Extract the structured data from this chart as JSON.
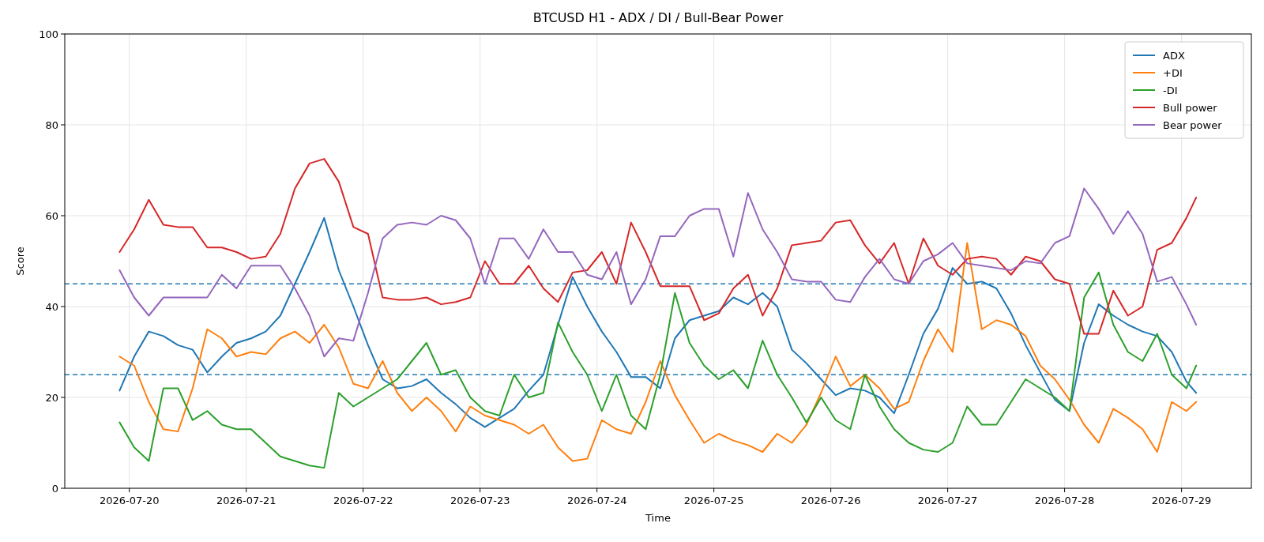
{
  "chart_data": {
    "type": "line",
    "title": "BTCUSD H1 - ADX / DI / Bull-Bear Power",
    "xlabel": "Time",
    "ylabel": "Score",
    "x": [
      "2026-07-19T22:00",
      "2026-07-20T01:00",
      "2026-07-20T04:00",
      "2026-07-20T07:00",
      "2026-07-20T10:00",
      "2026-07-20T13:00",
      "2026-07-20T16:00",
      "2026-07-20T19:00",
      "2026-07-20T22:00",
      "2026-07-21T01:00",
      "2026-07-21T04:00",
      "2026-07-21T07:00",
      "2026-07-21T10:00",
      "2026-07-21T13:00",
      "2026-07-21T16:00",
      "2026-07-21T19:00",
      "2026-07-21T22:00",
      "2026-07-22T01:00",
      "2026-07-22T04:00",
      "2026-07-22T07:00",
      "2026-07-22T10:00",
      "2026-07-22T13:00",
      "2026-07-22T16:00",
      "2026-07-22T19:00",
      "2026-07-22T22:00",
      "2026-07-23T01:00",
      "2026-07-23T04:00",
      "2026-07-23T07:00",
      "2026-07-23T10:00",
      "2026-07-23T13:00",
      "2026-07-23T16:00",
      "2026-07-23T19:00",
      "2026-07-23T22:00",
      "2026-07-24T01:00",
      "2026-07-24T04:00",
      "2026-07-24T07:00",
      "2026-07-24T10:00",
      "2026-07-24T13:00",
      "2026-07-24T16:00",
      "2026-07-24T19:00",
      "2026-07-24T22:00",
      "2026-07-25T01:00",
      "2026-07-25T04:00",
      "2026-07-25T07:00",
      "2026-07-25T10:00",
      "2026-07-25T13:00",
      "2026-07-25T16:00",
      "2026-07-25T19:00",
      "2026-07-25T22:00",
      "2026-07-26T01:00",
      "2026-07-26T04:00",
      "2026-07-26T07:00",
      "2026-07-26T10:00",
      "2026-07-26T13:00",
      "2026-07-26T16:00",
      "2026-07-26T19:00",
      "2026-07-26T22:00",
      "2026-07-27T01:00",
      "2026-07-27T04:00",
      "2026-07-27T07:00",
      "2026-07-27T10:00",
      "2026-07-27T13:00",
      "2026-07-27T16:00",
      "2026-07-27T19:00",
      "2026-07-27T22:00",
      "2026-07-28T01:00",
      "2026-07-28T04:00",
      "2026-07-28T07:00",
      "2026-07-28T10:00",
      "2026-07-28T13:00",
      "2026-07-28T16:00",
      "2026-07-28T19:00",
      "2026-07-28T22:00",
      "2026-07-29T01:00",
      "2026-07-29T03:00"
    ],
    "series": [
      {
        "name": "ADX",
        "color": "#1f77b4",
        "values": [
          21.5,
          29,
          34.5,
          33.5,
          31.5,
          30.5,
          25.5,
          29,
          32,
          33,
          34.5,
          38,
          45,
          52,
          59.5,
          48,
          40,
          31.5,
          24,
          22,
          22.5,
          24,
          21,
          18.5,
          15.5,
          13.5,
          15.5,
          17.5,
          21.5,
          25,
          36,
          46.5,
          40,
          34.5,
          30,
          24.5,
          24.5,
          22,
          33,
          37,
          38,
          39,
          42,
          40.5,
          43,
          40,
          30.5,
          27.5,
          24,
          20.5,
          22,
          21.5,
          20,
          16.5,
          25,
          34,
          39.5,
          48.5,
          45,
          45.5,
          44,
          38.5,
          31.5,
          25.5,
          19.5,
          17,
          32,
          40.5,
          38,
          36,
          34.5,
          33.5,
          30,
          23.5,
          21
        ]
      },
      {
        "name": "+DI",
        "color": "#ff7f0e",
        "values": [
          29,
          27,
          19,
          13,
          12.5,
          22,
          35,
          33,
          29,
          30,
          29.5,
          33,
          34.5,
          32,
          36,
          31,
          23,
          22,
          28,
          21,
          17,
          20,
          17,
          12.5,
          18,
          16,
          15,
          14,
          12,
          14,
          9,
          6,
          6.5,
          15,
          13,
          12,
          19,
          28,
          20.5,
          15,
          10,
          12,
          10.5,
          9.5,
          8,
          12,
          10,
          14,
          21,
          29,
          22.5,
          25,
          22,
          17.5,
          19,
          28,
          35,
          30,
          54,
          35,
          37,
          36,
          33.5,
          27,
          24,
          19.5,
          14,
          10,
          17.5,
          15.5,
          13,
          8,
          19,
          17,
          19
        ]
      },
      {
        "name": "-DI",
        "color": "#2ca02c",
        "values": [
          14.5,
          9,
          6,
          22,
          22,
          15,
          17,
          14,
          13,
          13,
          10,
          7,
          6,
          5,
          4.5,
          21,
          18,
          20,
          22,
          24,
          28,
          32,
          25,
          26,
          20,
          17,
          16,
          25,
          20,
          21,
          36.5,
          30,
          25,
          17,
          25,
          16,
          13,
          25,
          43,
          32,
          27,
          24,
          26,
          22,
          32.5,
          25,
          20,
          14.5,
          20,
          15,
          13,
          25,
          18,
          13,
          10,
          8.5,
          8,
          10,
          18,
          14,
          14,
          19,
          24,
          22,
          20,
          17,
          42,
          47.5,
          36,
          30,
          28,
          34,
          25,
          22,
          27
        ]
      },
      {
        "name": "Bull power",
        "color": "#d62728",
        "values": [
          52,
          57,
          63.5,
          58,
          57.5,
          57.5,
          53,
          53,
          52,
          50.5,
          51,
          56,
          66,
          71.5,
          72.5,
          67.5,
          57.5,
          56,
          42,
          41.5,
          41.5,
          42,
          40.5,
          41,
          42,
          50,
          45,
          45,
          49,
          44,
          41,
          47.5,
          48,
          52,
          45,
          58.5,
          52,
          44.5,
          44.5,
          44.5,
          37,
          38.5,
          44,
          47,
          38,
          44,
          53.5,
          54,
          54.5,
          58.5,
          59,
          53.5,
          49.5,
          54,
          45,
          55,
          49,
          47,
          50.5,
          51,
          50.5,
          47,
          51,
          50,
          46,
          45,
          34,
          34,
          43.5,
          38,
          40,
          52.5,
          54,
          59.5,
          64
        ]
      },
      {
        "name": "Bear power",
        "color": "#9467bd",
        "values": [
          48,
          42,
          38,
          42,
          42,
          42,
          42,
          47,
          44,
          49,
          49,
          49,
          44,
          38,
          29,
          33,
          32.5,
          43,
          55,
          58,
          58.5,
          58,
          60,
          59,
          55,
          45,
          55,
          55,
          50.5,
          57,
          52,
          52,
          47,
          46,
          52,
          40.5,
          46,
          55.5,
          55.5,
          60,
          61.5,
          61.5,
          51,
          65,
          57,
          52,
          46,
          45.5,
          45.5,
          41.5,
          41,
          46.5,
          50.5,
          46,
          45,
          50,
          51.5,
          54,
          49.5,
          49,
          48.5,
          48,
          50,
          49.5,
          54,
          55.5,
          66,
          61.5,
          56,
          61,
          56,
          45.5,
          46.5,
          40.5,
          36
        ]
      }
    ],
    "xlim": [
      "2026-07-19T10:45",
      "2026-07-29T14:20"
    ],
    "xticks": [
      {
        "value": "2026-07-20",
        "label": "2026-07-20"
      },
      {
        "value": "2026-07-21",
        "label": "2026-07-21"
      },
      {
        "value": "2026-07-22",
        "label": "2026-07-22"
      },
      {
        "value": "2026-07-23",
        "label": "2026-07-23"
      },
      {
        "value": "2026-07-24",
        "label": "2026-07-24"
      },
      {
        "value": "2026-07-25",
        "label": "2026-07-25"
      },
      {
        "value": "2026-07-26",
        "label": "2026-07-26"
      },
      {
        "value": "2026-07-27",
        "label": "2026-07-27"
      },
      {
        "value": "2026-07-28",
        "label": "2026-07-28"
      },
      {
        "value": "2026-07-29",
        "label": "2026-07-29"
      }
    ],
    "ylim": [
      0,
      100
    ],
    "yticks": [
      0,
      20,
      40,
      60,
      80,
      100
    ],
    "ref_lines": [
      {
        "axis": "y",
        "value": 45,
        "color": "#1f77b4",
        "line_style": "dashed"
      },
      {
        "axis": "y",
        "value": 25,
        "color": "#1f77b4",
        "line_style": "dashed"
      }
    ],
    "grid": true,
    "legend": "top right",
    "line_style": "solid",
    "marker": "none"
  }
}
